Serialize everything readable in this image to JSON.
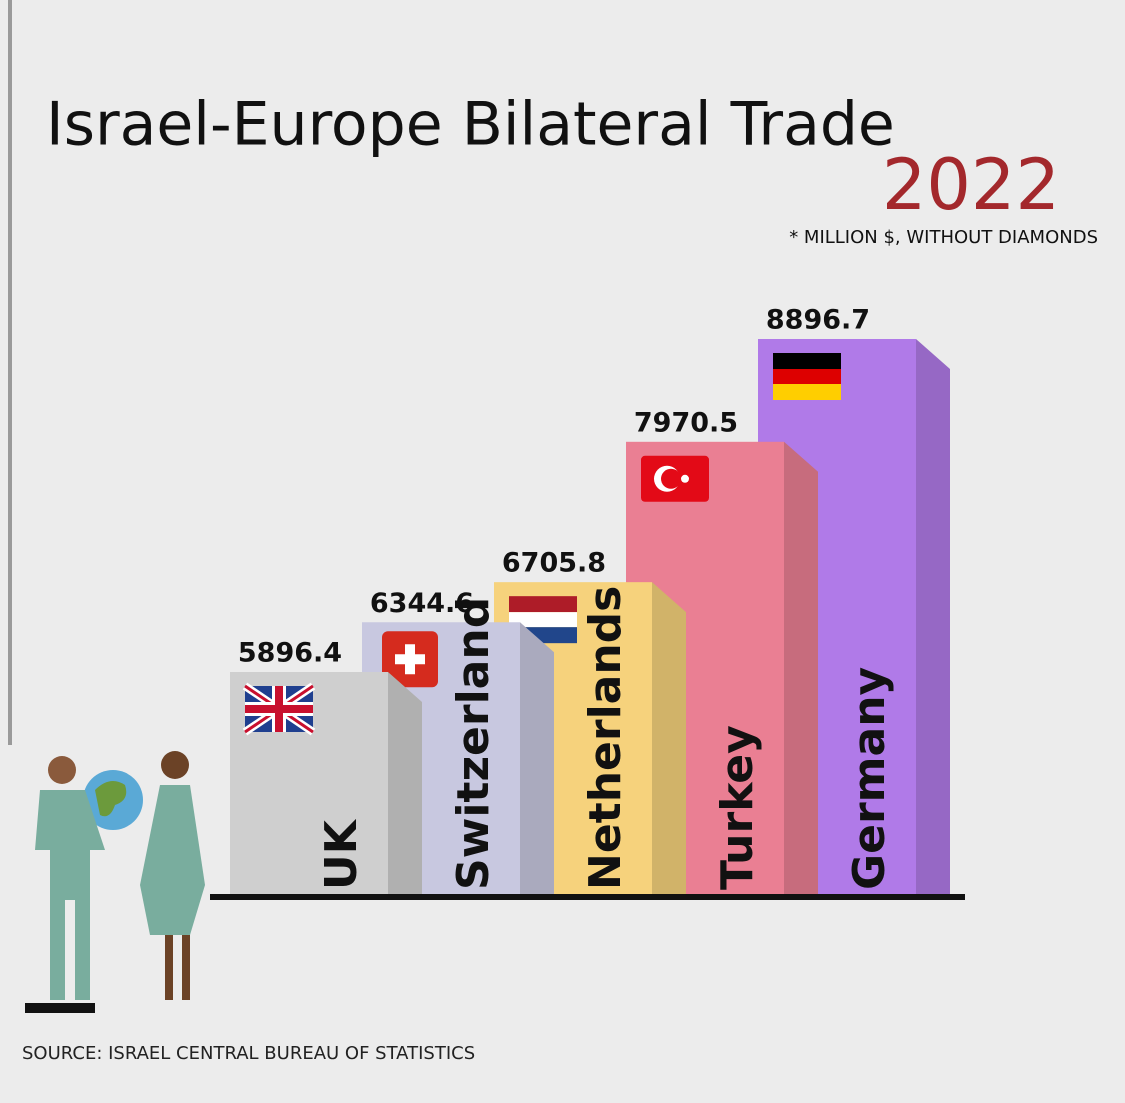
{
  "chart_data": {
    "type": "bar",
    "title": "Israel-Europe Bilateral Trade",
    "subtitle": "2022",
    "note": "* MILLION $, WITHOUT DIAMONDS",
    "source": "SOURCE: ISRAEL CENTRAL BUREAU OF STATISTICS",
    "categories": [
      "UK",
      "Switzerland",
      "Netherlands",
      "Turkey",
      "Germany"
    ],
    "values": [
      5896.4,
      6344.6,
      6705.8,
      7970.5,
      8896.7
    ],
    "colors": [
      "#cfcfcf",
      "#c8c8e0",
      "#f6d27c",
      "#ea7f93",
      "#b07ae8"
    ]
  }
}
